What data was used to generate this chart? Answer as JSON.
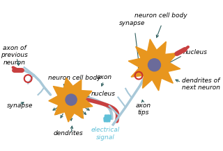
{
  "bg_color": "#ffffff",
  "neuron_color": "#E8961E",
  "nucleus_color": "#6B6B9A",
  "axon_color_light": "#A8C8D8",
  "axon_color_red": "#C84040",
  "arrow_color": "#2F5F5F",
  "elec_signal_color": "#60C0D8",
  "synapse_circle_color": "#C83030",
  "text_color": "#000000",
  "labels": {
    "axon_of_prev": "axon of\nprevious\nneuron",
    "neuron_cell_body_left": "neuron cell body",
    "nucleus_left": "nucleus",
    "synapse_left": "synapse",
    "dendrites": "dendrites",
    "axon_mid": "axon",
    "synapse_right": "synapse",
    "neuron_cell_body_right": "neuron cell body",
    "nucleus_right": "nucleus",
    "axon_tips": "axon\ntips",
    "dendrites_next": "dendrites of\nnext neuron",
    "electrical_signal": "electrical\nsignal"
  }
}
